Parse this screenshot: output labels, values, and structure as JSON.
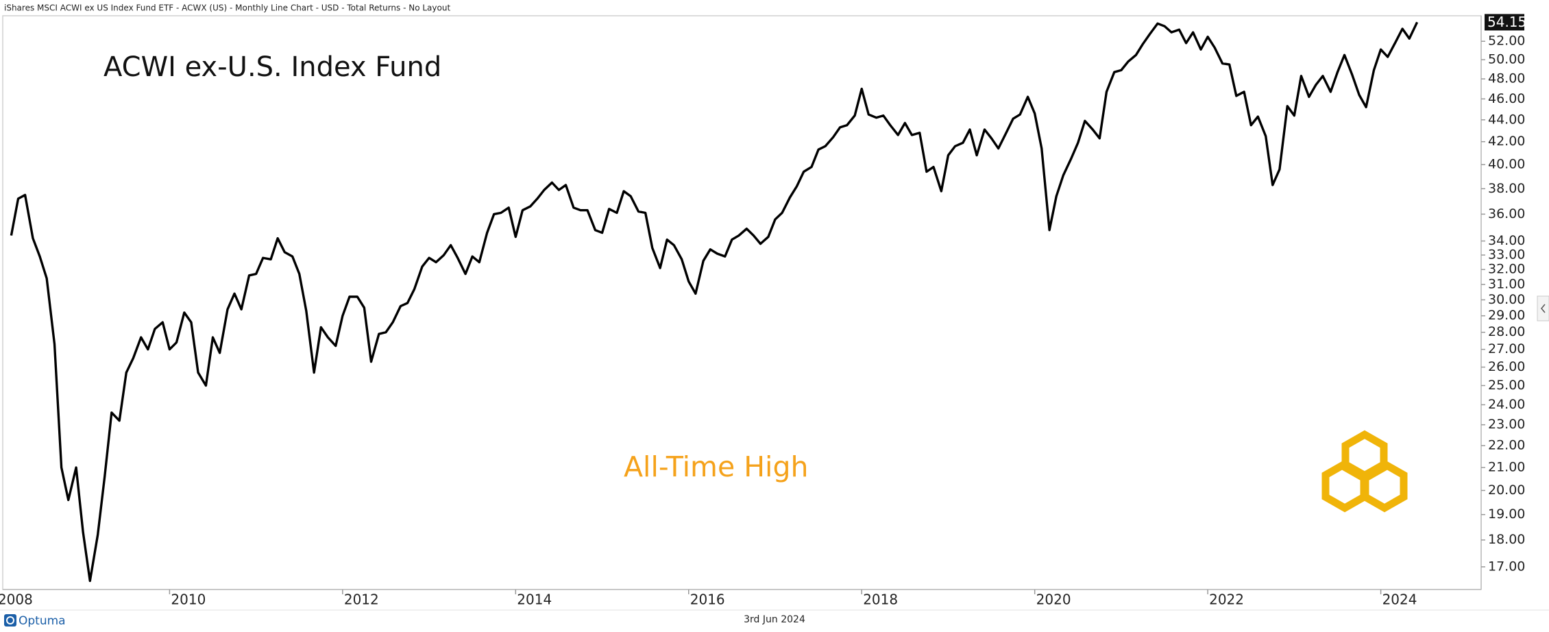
{
  "chart_data": {
    "type": "line",
    "header": "iShares MSCI ACWI ex US Index Fund ETF - ACWX (US) - Monthly Line Chart - USD - Total Returns - No Layout",
    "title": "ACWI ex-U.S. Index Fund",
    "annotation": "All-Time High",
    "date": "3rd Jun 2024",
    "brand": "Optuma",
    "yscale": "log",
    "grid": false,
    "x": [
      2008.17,
      2008.25,
      2008.33,
      2008.42,
      2008.5,
      2008.58,
      2008.67,
      2008.75,
      2008.83,
      2008.92,
      2009,
      2009.08,
      2009.17,
      2009.25,
      2009.33,
      2009.42,
      2009.5,
      2009.58,
      2009.67,
      2009.75,
      2009.83,
      2009.92,
      2010,
      2010.08,
      2010.17,
      2010.25,
      2010.33,
      2010.42,
      2010.5,
      2010.58,
      2010.67,
      2010.75,
      2010.83,
      2010.92,
      2011,
      2011.08,
      2011.17,
      2011.25,
      2011.33,
      2011.42,
      2011.5,
      2011.58,
      2011.67,
      2011.75,
      2011.83,
      2011.92,
      2012,
      2012.08,
      2012.17,
      2012.25,
      2012.33,
      2012.42,
      2012.5,
      2012.58,
      2012.67,
      2012.75,
      2012.83,
      2012.92,
      2013,
      2013.08,
      2013.17,
      2013.25,
      2013.33,
      2013.42,
      2013.5,
      2013.58,
      2013.67,
      2013.75,
      2013.83,
      2013.92,
      2014,
      2014.08,
      2014.17,
      2014.25,
      2014.33,
      2014.42,
      2014.5,
      2014.58,
      2014.67,
      2014.75,
      2014.83,
      2014.92,
      2015,
      2015.08,
      2015.17,
      2015.25,
      2015.33,
      2015.42,
      2015.5,
      2015.58,
      2015.67,
      2015.75,
      2015.83,
      2015.92,
      2016,
      2016.08,
      2016.17,
      2016.25,
      2016.33,
      2016.42,
      2016.5,
      2016.58,
      2016.67,
      2016.75,
      2016.83,
      2016.92,
      2017,
      2017.08,
      2017.17,
      2017.25,
      2017.33,
      2017.42,
      2017.5,
      2017.58,
      2017.67,
      2017.75,
      2017.83,
      2017.92,
      2018,
      2018.08,
      2018.17,
      2018.25,
      2018.33,
      2018.42,
      2018.5,
      2018.58,
      2018.67,
      2018.75,
      2018.83,
      2018.92,
      2019,
      2019.08,
      2019.17,
      2019.25,
      2019.33,
      2019.42,
      2019.5,
      2019.58,
      2019.67,
      2019.75,
      2019.83,
      2019.92,
      2020,
      2020.08,
      2020.17,
      2020.25,
      2020.33,
      2020.42,
      2020.5,
      2020.58,
      2020.67,
      2020.75,
      2020.83,
      2020.92,
      2021,
      2021.08,
      2021.17,
      2021.25,
      2021.33,
      2021.42,
      2021.5,
      2021.58,
      2021.67,
      2021.75,
      2021.83,
      2021.92,
      2022,
      2022.08,
      2022.17,
      2022.25,
      2022.33,
      2022.42,
      2022.5,
      2022.58,
      2022.67,
      2022.75,
      2022.83,
      2022.92,
      2023,
      2023.08,
      2023.17,
      2023.25,
      2023.33,
      2023.42,
      2023.5,
      2023.58,
      2023.67,
      2023.75,
      2023.83,
      2023.92,
      2024,
      2024.08,
      2024.17,
      2024.25,
      2024.33,
      2024.42
    ],
    "series": [
      {
        "color": "#000000",
        "values": [
          34.4,
          37.2,
          37.5,
          34.2,
          32.9,
          31.4,
          27.3,
          21.0,
          19.6,
          21.0,
          18.3,
          16.5,
          18.2,
          20.6,
          23.6,
          23.2,
          25.7,
          26.5,
          27.7,
          27.0,
          28.2,
          28.6,
          27.0,
          27.4,
          29.2,
          28.6,
          25.7,
          25.0,
          27.7,
          26.8,
          29.4,
          30.4,
          29.4,
          31.6,
          31.7,
          32.8,
          32.7,
          34.2,
          33.2,
          32.9,
          31.7,
          29.3,
          25.7,
          28.3,
          27.7,
          27.2,
          29.0,
          30.2,
          30.2,
          29.5,
          26.3,
          27.9,
          28.0,
          28.6,
          29.6,
          29.8,
          30.7,
          32.2,
          32.8,
          32.5,
          33.0,
          33.7,
          32.8,
          31.7,
          32.9,
          32.5,
          34.6,
          36.0,
          36.1,
          36.5,
          34.3,
          36.3,
          36.6,
          37.2,
          37.9,
          38.5,
          37.9,
          38.3,
          36.5,
          36.3,
          36.3,
          34.8,
          34.6,
          36.4,
          36.1,
          37.8,
          37.4,
          36.2,
          36.1,
          33.5,
          32.1,
          34.1,
          33.7,
          32.7,
          31.2,
          30.4,
          32.6,
          33.4,
          33.1,
          32.9,
          34.1,
          34.4,
          34.9,
          34.4,
          33.8,
          34.3,
          35.6,
          36.1,
          37.3,
          38.2,
          39.4,
          39.8,
          41.3,
          41.6,
          42.4,
          43.3,
          43.5,
          44.4,
          47.0,
          44.5,
          44.2,
          44.4,
          43.5,
          42.6,
          43.7,
          42.6,
          42.8,
          39.4,
          39.8,
          37.8,
          40.8,
          41.6,
          41.9,
          43.1,
          40.8,
          43.1,
          42.3,
          41.4,
          42.8,
          44.1,
          44.5,
          46.2,
          44.6,
          41.4,
          34.8,
          37.4,
          39.1,
          40.5,
          41.9,
          43.9,
          43.1,
          42.3,
          46.7,
          48.7,
          48.9,
          49.8,
          50.5,
          51.7,
          52.8,
          54.0,
          53.7,
          53.0,
          53.3,
          51.8,
          53.0,
          51.1,
          52.5,
          51.3,
          49.6,
          49.5,
          46.3,
          46.7,
          43.5,
          44.3,
          42.5,
          38.3,
          39.6,
          45.3,
          44.4,
          48.3,
          46.2,
          47.4,
          48.3,
          46.7,
          48.7,
          50.5,
          48.4,
          46.4,
          45.2,
          48.9,
          51.1,
          50.3,
          51.9,
          53.4,
          52.3,
          54.15
        ]
      }
    ],
    "xlim": [
      2008.04,
      2025.16
    ],
    "xticks": [
      2008,
      2010,
      2012,
      2014,
      2016,
      2018,
      2020,
      2022,
      2024
    ],
    "ylim": [
      16.2,
      54.9
    ],
    "yticks": [
      {
        "value": 17,
        "label": "17.00"
      },
      {
        "value": 18,
        "label": "18.00"
      },
      {
        "value": 19,
        "label": "19.00"
      },
      {
        "value": 20,
        "label": "20.00"
      },
      {
        "value": 21,
        "label": "21.00"
      },
      {
        "value": 22,
        "label": "22.00"
      },
      {
        "value": 23,
        "label": "23.00"
      },
      {
        "value": 24,
        "label": "24.00"
      },
      {
        "value": 25,
        "label": "25.00"
      },
      {
        "value": 26,
        "label": "26.00"
      },
      {
        "value": 27,
        "label": "27.00"
      },
      {
        "value": 28,
        "label": "28.00"
      },
      {
        "value": 29,
        "label": "29.00"
      },
      {
        "value": 30,
        "label": "30.00"
      },
      {
        "value": 31,
        "label": "31.00"
      },
      {
        "value": 32,
        "label": "32.00"
      },
      {
        "value": 33,
        "label": "33.00"
      },
      {
        "value": 34,
        "label": "34.00"
      },
      {
        "value": 36,
        "label": "36.00"
      },
      {
        "value": 38,
        "label": "38.00"
      },
      {
        "value": 40,
        "label": "40.00"
      },
      {
        "value": 42,
        "label": "42.00"
      },
      {
        "value": 44,
        "label": "44.00"
      },
      {
        "value": 46,
        "label": "46.00"
      },
      {
        "value": 48,
        "label": "48.00"
      },
      {
        "value": 50,
        "label": "50.00"
      },
      {
        "value": 52,
        "label": "52.00"
      }
    ]
  }
}
